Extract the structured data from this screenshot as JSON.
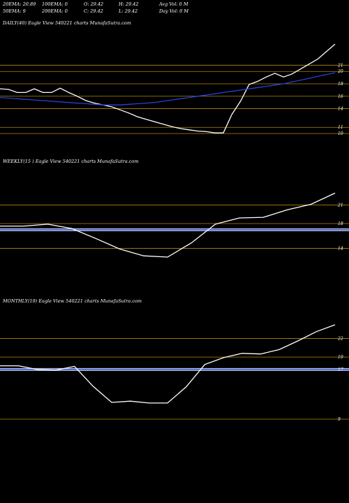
{
  "header": {
    "row1": [
      "20EMA: 20.89",
      "100EMA: 0",
      "O: 29.42",
      "H: 29.42",
      "Avg Vol: 0  M"
    ],
    "row2": [
      "50EMA: 9",
      "200EMA: 0",
      "C: 29.42",
      "L: 29.42",
      "Day Vol: 0  M"
    ]
  },
  "colors": {
    "background": "#000000",
    "price": "#ffffff",
    "ema": "#2b3fd6",
    "level": "#b8860b",
    "band": "#b0c4de"
  },
  "chart_data": [
    {
      "type": "line",
      "title": "DAILY(40) Eagle  View  540221 charts MunafaSutra.com",
      "ylim": [
        9,
        27
      ],
      "x": [
        0,
        1,
        2,
        3,
        4,
        5,
        6,
        7,
        8,
        9,
        10,
        11,
        12,
        13,
        14,
        15,
        16,
        17,
        18,
        19,
        20,
        21,
        22,
        23,
        24,
        25,
        26,
        27,
        28,
        29,
        30,
        31,
        32,
        33,
        34,
        35,
        36,
        37,
        38,
        39
      ],
      "series": [
        {
          "values": [
            17.2,
            17.1,
            16.6,
            16.6,
            17.2,
            16.6,
            16.6,
            17.3,
            16.6,
            16.0,
            15.3,
            14.9,
            14.6,
            14.3,
            13.8,
            13.3,
            12.7,
            12.3,
            11.9,
            11.5,
            11.1,
            10.8,
            10.6,
            10.4,
            10.3,
            10.1,
            10.1,
            13.1,
            15.2,
            17.9,
            18.4,
            19.1,
            19.7,
            19.1,
            19.6,
            20.4,
            21.2,
            22.0,
            23.2,
            24.4
          ]
        },
        {
          "values": [
            15.8,
            15.7,
            15.6,
            15.5,
            15.4,
            15.3,
            15.2,
            15.1,
            15.0,
            14.9,
            14.8,
            14.7,
            14.6,
            14.6,
            14.6,
            14.7,
            14.8,
            14.9,
            15.0,
            15.2,
            15.4,
            15.6,
            15.8,
            16.0,
            16.2,
            16.4,
            16.6,
            16.8,
            17.0,
            17.2,
            17.4,
            17.6,
            17.8,
            18.0,
            18.3,
            18.6,
            18.9,
            19.2,
            19.5,
            19.8
          ]
        }
      ],
      "levels": [
        21,
        20,
        18,
        16,
        14,
        11,
        10
      ],
      "yticks": [
        "21",
        "20",
        "18",
        "16",
        "14",
        "11",
        "10"
      ]
    },
    {
      "type": "line",
      "title": "WEEKLY(15                            ) Eagle  View  540221 charts MunafaSutra.com",
      "ylim": [
        9,
        27
      ],
      "x": [
        0,
        1,
        2,
        3,
        4,
        5,
        6,
        7,
        8,
        9,
        10,
        11,
        12,
        13,
        14
      ],
      "series": [
        {
          "values": [
            17.6,
            17.6,
            17.9,
            17.2,
            15.6,
            13.9,
            12.8,
            12.6,
            14.9,
            17.9,
            18.9,
            19.0,
            20.2,
            21.1,
            22.9
          ]
        }
      ],
      "levels": [
        21,
        18,
        17,
        14
      ],
      "yticks": [
        "21",
        "18",
        "14"
      ]
    },
    {
      "type": "line",
      "title": "MONTHLY(19) Eagle  View  540221 charts MunafaSutra.com",
      "ylim": [
        9,
        27
      ],
      "x": [
        0,
        1,
        2,
        3,
        4,
        5,
        6,
        7,
        8,
        9,
        10,
        11,
        12,
        13,
        14,
        15,
        16,
        17,
        18
      ],
      "series": [
        {
          "values": [
            17.6,
            17.6,
            17.0,
            16.9,
            17.5,
            14.3,
            11.7,
            11.9,
            11.6,
            11.6,
            14.2,
            17.8,
            18.9,
            19.6,
            19.5,
            20.2,
            21.6,
            23.1,
            24.2
          ]
        }
      ],
      "levels": [
        22,
        19,
        17,
        9
      ],
      "yticks": [
        "22",
        "19",
        "17",
        "9"
      ]
    }
  ]
}
